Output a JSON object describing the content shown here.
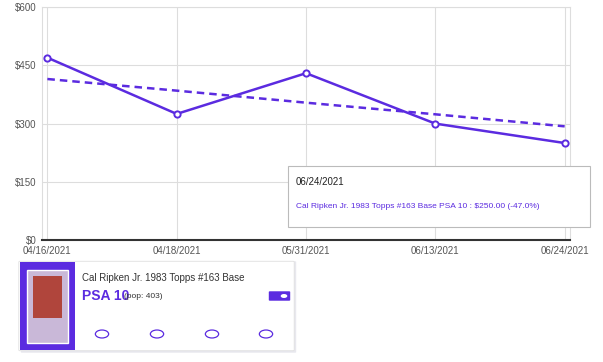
{
  "chart_data": {
    "type": "line",
    "categories": [
      "04/16/2021",
      "04/18/2021",
      "05/31/2021",
      "06/13/2021",
      "06/24/2021"
    ],
    "series": [
      {
        "color": "#5b2be0",
        "values": [
          470,
          325,
          430,
          300,
          250
        ],
        "marker": "circle",
        "line_style": "solid"
      },
      {
        "color": "#5b2be0",
        "values": [
          415,
          385,
          354,
          324,
          293
        ],
        "marker": "none",
        "line_style": "dashed"
      }
    ],
    "ylim": [
      0,
      600
    ],
    "yticks": [
      {
        "value": 0,
        "label": "$0"
      },
      {
        "value": 150,
        "label": "$150"
      },
      {
        "value": 300,
        "label": "$300"
      },
      {
        "value": 450,
        "label": "$450"
      },
      {
        "value": 600,
        "label": "$600"
      }
    ],
    "grid": true,
    "annotations": [
      {
        "title": "06/24/2021",
        "text": "Cal Ripken Jr. 1983 Topps #163 Base PSA 10 : $250.00 (-47.0%)"
      }
    ]
  },
  "card": {
    "title": "Cal Ripken Jr. 1983 Topps #163 Base",
    "grade": "PSA 10",
    "pop": "(pop: 403)"
  }
}
